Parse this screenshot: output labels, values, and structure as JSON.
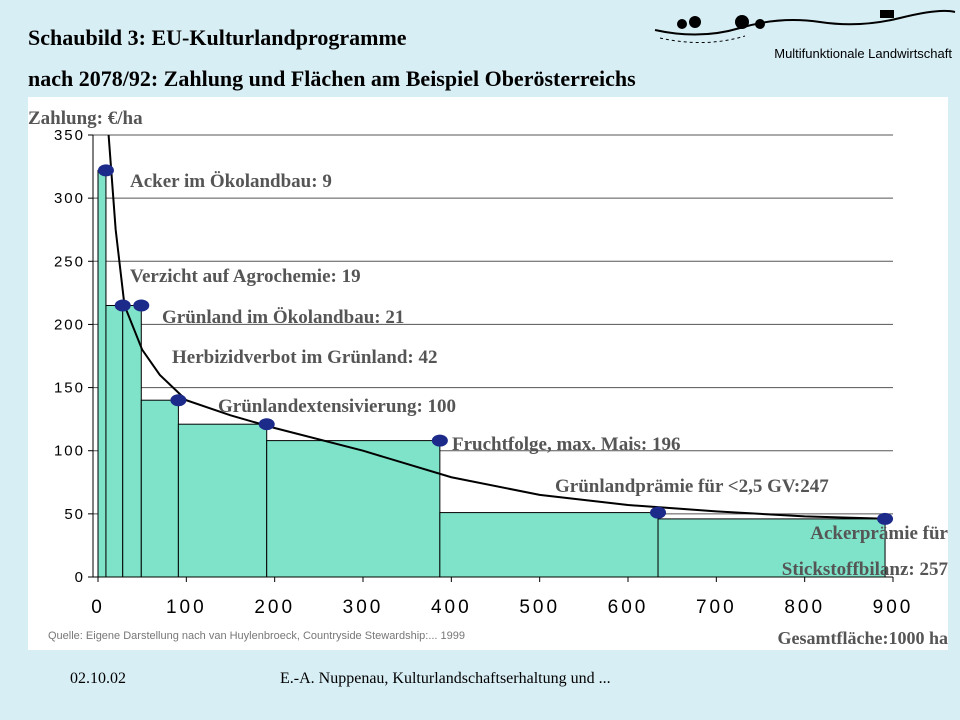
{
  "chart_data": {
    "type": "step",
    "title": [
      "Schaubild 3: EU-Kulturlandprogramme",
      "nach 2078/92:  Zahlung  und Flächen am Beispiel Oberösterreichs"
    ],
    "logo_text": "Multifunktionale Landwirtschaft",
    "ylabel": "Zahlung: €/ha",
    "xlabel": "Gesamtfläche:1000 ha",
    "source": "Quelle: Eigene Darstellung nach van Huylenbroeck, Countryside Stewardship:... 1999",
    "labels": [
      [
        "Acker im Ökolandbau: 9"
      ],
      [
        "Verzicht auf Agrochemie: 19"
      ],
      [
        "Grünland im Ökolandbau: 21"
      ],
      [
        "Herbizidverbot im Grünland: 42"
      ],
      [
        "Grünlandextensivierung: 100"
      ],
      [
        "Fruchtfolge, max. Mais: 196"
      ],
      [
        "Grünlandprämie  für <2,5 GV:247"
      ],
      [
        "Ackerprämie für",
        "Stickstoffbilanz: 257"
      ]
    ],
    "widths": [
      9,
      19,
      21,
      42,
      100,
      196,
      247,
      257
    ],
    "values": [
      322,
      215,
      215,
      140,
      121,
      108,
      51,
      46
    ],
    "color": "#7fe3c9",
    "marker_color": "#1c2a8a",
    "curve": {
      "x": [
        12,
        20,
        30,
        50,
        70,
        100,
        150,
        200,
        300,
        400,
        500,
        600,
        700,
        800,
        900
      ],
      "y": [
        350,
        275,
        215,
        180,
        160,
        140,
        128,
        118,
        100,
        79,
        65,
        57,
        52,
        48,
        46
      ]
    },
    "xlim": [
      0,
      900
    ],
    "ylim": [
      0,
      350
    ],
    "xticks": [
      0,
      100,
      200,
      300,
      400,
      500,
      600,
      700,
      800,
      900
    ],
    "yticks": [
      0,
      50,
      100,
      150,
      200,
      250,
      300,
      350
    ],
    "grid": true
  },
  "footer": {
    "date": "02.10.02",
    "text": "E.-A. Nuppenau, Kulturlandschaftserhaltung und ..."
  }
}
